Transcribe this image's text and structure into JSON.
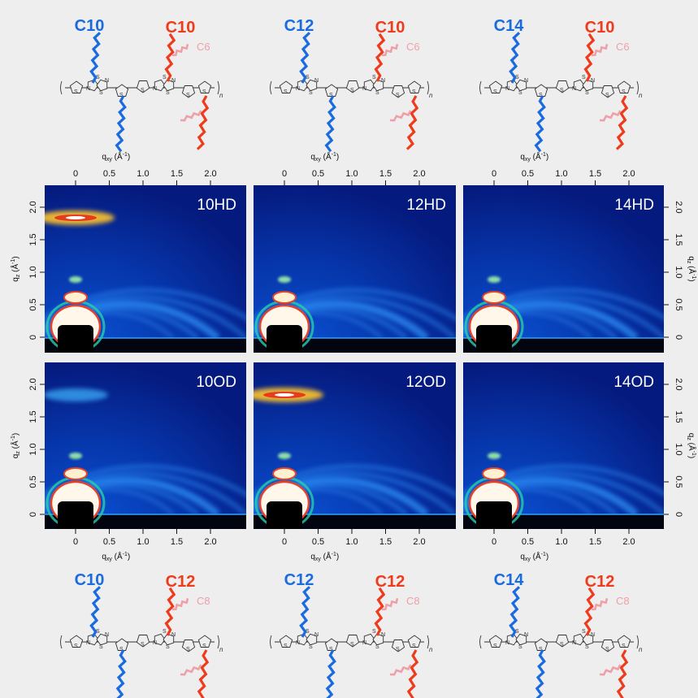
{
  "colors": {
    "page_bg": "#eeeeee",
    "blue_chain": "#1a6be0",
    "red_chain": "#ee3b1c",
    "pink_chain": "#eea0a8",
    "bond_color": "#333333",
    "detector_bg": "#061f86",
    "ring_color": "#2f8ef5",
    "hot_spot": "#f4a21a"
  },
  "structures": {
    "top": [
      {
        "left_label": "C10",
        "right_label": "C10",
        "side_label": "C6"
      },
      {
        "left_label": "C12",
        "right_label": "C10",
        "side_label": "C6"
      },
      {
        "left_label": "C14",
        "right_label": "C10",
        "side_label": "C6"
      }
    ],
    "bottom": [
      {
        "left_label": "C10",
        "right_label": "C12",
        "side_label": "C8"
      },
      {
        "left_label": "C12",
        "right_label": "C12",
        "side_label": "C8"
      },
      {
        "left_label": "C14",
        "right_label": "C12",
        "side_label": "C8"
      }
    ],
    "atom_S": "S",
    "atom_N": "N",
    "repeat_n": "n"
  },
  "axes": {
    "qxy_main": "q",
    "qxy_sub": "xy",
    "qz_main": "q",
    "qz_sub": "z",
    "unit_pre": "(Å",
    "unit_exp": "-1",
    "unit_post": ")",
    "x_ticks": [
      "0",
      "0.5",
      "1.0",
      "1.5",
      "2.0"
    ],
    "y_ticks": [
      "0",
      "0.5",
      "1.0",
      "1.5",
      "2.0"
    ]
  },
  "panels": [
    {
      "label": "10HD",
      "pi_stack": "strong"
    },
    {
      "label": "12HD",
      "pi_stack": "none"
    },
    {
      "label": "14HD",
      "pi_stack": "none"
    },
    {
      "label": "10OD",
      "pi_stack": "weak"
    },
    {
      "label": "12OD",
      "pi_stack": "strong"
    },
    {
      "label": "14OD",
      "pi_stack": "none"
    }
  ]
}
